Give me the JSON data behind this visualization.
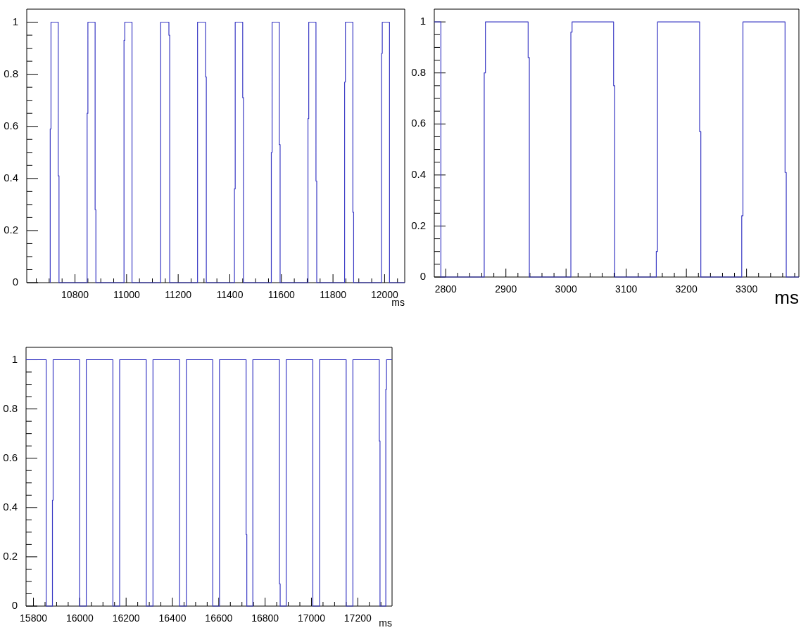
{
  "chart_data": [
    {
      "type": "step",
      "xlabel": "ms",
      "color": "#3a3ac4",
      "grid": false,
      "legend": false,
      "xlim": [
        10613,
        12078
      ],
      "ylim": [
        0,
        1.05
      ],
      "x": [
        10704,
        10704,
        10707,
        10735,
        10738,
        10847,
        10850,
        10878,
        10881,
        10990,
        10993,
        11021,
        11132,
        11164,
        11167,
        11275,
        11306,
        11309,
        11418,
        11421,
        11450,
        11453,
        11561,
        11564,
        11592,
        11595,
        11703,
        11706,
        11734,
        11737,
        11845,
        11848,
        11877,
        11880,
        11988,
        11991,
        12019,
        12078
      ],
      "values": [
        0,
        0.59,
        1,
        0.41,
        0,
        0.65,
        1,
        0.28,
        0,
        0.93,
        1,
        0,
        1,
        0.95,
        0,
        1,
        0.79,
        0,
        0.36,
        1,
        0.71,
        0,
        0.5,
        1,
        0.53,
        0,
        0.63,
        1,
        0.39,
        0,
        0.77,
        1,
        0.27,
        0,
        0.88,
        1,
        0,
        0
      ],
      "xticks": [
        {
          "value": 10650,
          "label": null
        },
        {
          "value": 10700,
          "label": null
        },
        {
          "value": 10750,
          "label": null
        },
        10800,
        {
          "value": 10850,
          "label": null
        },
        {
          "value": 10900,
          "label": null
        },
        {
          "value": 10950,
          "label": null
        },
        11000,
        {
          "value": 11050,
          "label": null
        },
        {
          "value": 11100,
          "label": null
        },
        {
          "value": 11150,
          "label": null
        },
        11200,
        {
          "value": 11250,
          "label": null
        },
        {
          "value": 11300,
          "label": null
        },
        {
          "value": 11350,
          "label": null
        },
        11400,
        {
          "value": 11450,
          "label": null
        },
        {
          "value": 11500,
          "label": null
        },
        {
          "value": 11550,
          "label": null
        },
        11600,
        {
          "value": 11650,
          "label": null
        },
        {
          "value": 11700,
          "label": null
        },
        {
          "value": 11750,
          "label": null
        },
        11800,
        {
          "value": 11850,
          "label": null
        },
        {
          "value": 11900,
          "label": null
        },
        {
          "value": 11950,
          "label": null
        },
        12000,
        {
          "value": 12050,
          "label": null
        }
      ],
      "yticks": [
        0,
        {
          "value": 0.05,
          "label": null
        },
        {
          "value": 0.1,
          "label": null
        },
        {
          "value": 0.15,
          "label": null
        },
        0.2,
        {
          "value": 0.25,
          "label": null
        },
        {
          "value": 0.3,
          "label": null
        },
        {
          "value": 0.35,
          "label": null
        },
        0.4,
        {
          "value": 0.45,
          "label": null
        },
        {
          "value": 0.5,
          "label": null
        },
        {
          "value": 0.55,
          "label": null
        },
        0.6,
        {
          "value": 0.65,
          "label": null
        },
        {
          "value": 0.7,
          "label": null
        },
        {
          "value": 0.75,
          "label": null
        },
        0.8,
        {
          "value": 0.85,
          "label": null
        },
        {
          "value": 0.9,
          "label": null
        },
        {
          "value": 0.95,
          "label": null
        },
        1
      ]
    },
    {
      "type": "step",
      "xlabel": "ms",
      "color": "#3a3ac4",
      "grid": false,
      "legend": false,
      "xlim": [
        2781,
        3387
      ],
      "ylim": [
        0,
        1.05
      ],
      "x": [
        2781,
        2792,
        2864,
        2866,
        2937,
        2939,
        3008,
        3010,
        3079,
        3081,
        3150,
        3152,
        3222,
        3224,
        3292,
        3294,
        3364,
        3366,
        3387
      ],
      "values": [
        1,
        0,
        0.8,
        1,
        0.86,
        0,
        0.96,
        1,
        0.75,
        0,
        0.1,
        1,
        0.57,
        0,
        0.24,
        1,
        0.41,
        0,
        0
      ],
      "xticks": [
        2800,
        {
          "value": 2820,
          "label": null
        },
        {
          "value": 2840,
          "label": null
        },
        {
          "value": 2860,
          "label": null
        },
        {
          "value": 2880,
          "label": null
        },
        2900,
        {
          "value": 2920,
          "label": null
        },
        {
          "value": 2940,
          "label": null
        },
        {
          "value": 2960,
          "label": null
        },
        {
          "value": 2980,
          "label": null
        },
        3000,
        {
          "value": 3020,
          "label": null
        },
        {
          "value": 3040,
          "label": null
        },
        {
          "value": 3060,
          "label": null
        },
        {
          "value": 3080,
          "label": null
        },
        3100,
        {
          "value": 3120,
          "label": null
        },
        {
          "value": 3140,
          "label": null
        },
        {
          "value": 3160,
          "label": null
        },
        {
          "value": 3180,
          "label": null
        },
        3200,
        {
          "value": 3220,
          "label": null
        },
        {
          "value": 3240,
          "label": null
        },
        {
          "value": 3260,
          "label": null
        },
        {
          "value": 3280,
          "label": null
        },
        3300,
        {
          "value": 3320,
          "label": null
        },
        {
          "value": 3340,
          "label": null
        },
        {
          "value": 3360,
          "label": null
        },
        {
          "value": 3380,
          "label": null
        }
      ],
      "yticks": [
        0,
        {
          "value": 0.05,
          "label": null
        },
        {
          "value": 0.1,
          "label": null
        },
        {
          "value": 0.15,
          "label": null
        },
        0.2,
        {
          "value": 0.25,
          "label": null
        },
        {
          "value": 0.3,
          "label": null
        },
        {
          "value": 0.35,
          "label": null
        },
        0.4,
        {
          "value": 0.45,
          "label": null
        },
        {
          "value": 0.5,
          "label": null
        },
        {
          "value": 0.55,
          "label": null
        },
        0.6,
        {
          "value": 0.65,
          "label": null
        },
        {
          "value": 0.7,
          "label": null
        },
        {
          "value": 0.75,
          "label": null
        },
        0.8,
        {
          "value": 0.85,
          "label": null
        },
        {
          "value": 0.9,
          "label": null
        },
        {
          "value": 0.95,
          "label": null
        },
        1
      ]
    },
    {
      "type": "step",
      "xlabel": "ms",
      "color": "#3a3ac4",
      "grid": false,
      "legend": false,
      "xlim": [
        15768,
        17348
      ],
      "ylim": [
        0,
        1.05
      ],
      "x": [
        15768,
        15855,
        15882,
        15885,
        15999,
        16028,
        16143,
        16172,
        16287,
        16316,
        16431,
        16460,
        16574,
        16603,
        16718,
        16721,
        16747,
        16862,
        16865,
        16891,
        17006,
        17035,
        17150,
        17179,
        17293,
        17296,
        17321,
        17324,
        17348
      ],
      "values": [
        1,
        0,
        0.43,
        1,
        0,
        1,
        0,
        1,
        0,
        1,
        0,
        1,
        0,
        1,
        0.29,
        0,
        1,
        0.09,
        0,
        1,
        0,
        1,
        0,
        1,
        0.67,
        0,
        0.88,
        1,
        1
      ],
      "xticks": [
        15800,
        {
          "value": 15850,
          "label": null
        },
        {
          "value": 15900,
          "label": null
        },
        {
          "value": 15950,
          "label": null
        },
        16000,
        {
          "value": 16050,
          "label": null
        },
        {
          "value": 16100,
          "label": null
        },
        {
          "value": 16150,
          "label": null
        },
        16200,
        {
          "value": 16250,
          "label": null
        },
        {
          "value": 16300,
          "label": null
        },
        {
          "value": 16350,
          "label": null
        },
        16400,
        {
          "value": 16450,
          "label": null
        },
        {
          "value": 16500,
          "label": null
        },
        {
          "value": 16550,
          "label": null
        },
        16600,
        {
          "value": 16650,
          "label": null
        },
        {
          "value": 16700,
          "label": null
        },
        {
          "value": 16750,
          "label": null
        },
        16800,
        {
          "value": 16850,
          "label": null
        },
        {
          "value": 16900,
          "label": null
        },
        {
          "value": 16950,
          "label": null
        },
        17000,
        {
          "value": 17050,
          "label": null
        },
        {
          "value": 17100,
          "label": null
        },
        {
          "value": 17150,
          "label": null
        },
        17200,
        {
          "value": 17250,
          "label": null
        },
        {
          "value": 17300,
          "label": null
        }
      ],
      "yticks": [
        0,
        {
          "value": 0.05,
          "label": null
        },
        {
          "value": 0.1,
          "label": null
        },
        {
          "value": 0.15,
          "label": null
        },
        0.2,
        {
          "value": 0.25,
          "label": null
        },
        {
          "value": 0.3,
          "label": null
        },
        {
          "value": 0.35,
          "label": null
        },
        0.4,
        {
          "value": 0.45,
          "label": null
        },
        {
          "value": 0.5,
          "label": null
        },
        {
          "value": 0.55,
          "label": null
        },
        0.6,
        {
          "value": 0.65,
          "label": null
        },
        {
          "value": 0.7,
          "label": null
        },
        {
          "value": 0.75,
          "label": null
        },
        0.8,
        {
          "value": 0.85,
          "label": null
        },
        {
          "value": 0.9,
          "label": null
        },
        {
          "value": 0.95,
          "label": null
        },
        1
      ]
    }
  ]
}
